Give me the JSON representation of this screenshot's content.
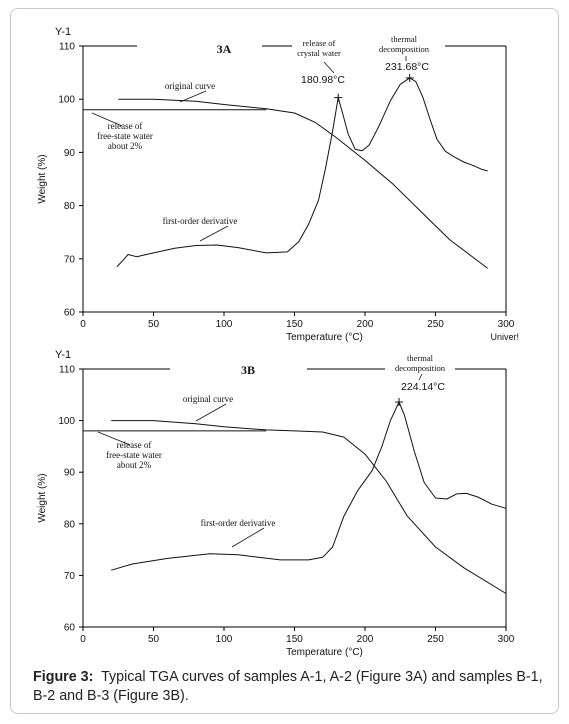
{
  "caption": {
    "label": "Figure 3:",
    "text": "Typical TGA curves of samples A-1, A-2 (Figure 3A) and samples B-1, B-2 and B-3 (Figure 3B)."
  },
  "chart_data": [
    {
      "type": "line",
      "panel_title": "3A",
      "corner_label": "Y-1",
      "xlabel": "Temperature (°C)",
      "ylabel": "Weight (%)",
      "x_unit_label": "Univer!",
      "xlim": [
        0,
        300
      ],
      "ylim": [
        60,
        110
      ],
      "x_ticks": [
        0,
        50,
        100,
        150,
        200,
        250,
        300
      ],
      "y_ticks": [
        60,
        70,
        80,
        90,
        100,
        110
      ],
      "grid": false,
      "series": [
        {
          "name": "original curve",
          "x": [
            25,
            50,
            80,
            100,
            130,
            150,
            165,
            180,
            200,
            220,
            240,
            260,
            287
          ],
          "y": [
            100,
            100,
            99.6,
            99,
            98.2,
            97.4,
            95.6,
            92.7,
            88.5,
            84,
            78.8,
            73.6,
            68.2
          ]
        },
        {
          "name": "first-order derivative",
          "x": [
            24,
            28,
            32,
            38,
            50,
            65,
            80,
            95,
            110,
            130,
            145,
            153,
            160,
            167,
            172,
            177,
            180.98,
            184,
            188,
            193,
            198,
            203,
            210,
            218,
            225,
            231.68,
            236,
            241,
            246,
            251,
            257,
            263,
            270,
            277,
            283,
            287
          ],
          "y": [
            68.5,
            69.6,
            70.8,
            70.4,
            71.1,
            72,
            72.5,
            72.6,
            72.1,
            71.1,
            71.3,
            73.2,
            76.5,
            81,
            87,
            94,
            100.3,
            97.5,
            93.5,
            90.6,
            90.3,
            91.4,
            95,
            99.7,
            102.8,
            104,
            103.3,
            100.4,
            96.3,
            92.5,
            90.2,
            89.2,
            88.2,
            87.5,
            86.8,
            86.5
          ]
        },
        {
          "name": "release of free-state water about 2%",
          "x": [
            0,
            130
          ],
          "y": [
            98,
            98
          ]
        }
      ],
      "annotations": [
        {
          "text_lines": [
            "original curve"
          ]
        },
        {
          "text_lines": [
            "release of",
            "free-state water",
            "about 2%"
          ]
        },
        {
          "text_lines": [
            "first-order derivative"
          ]
        },
        {
          "text_lines": [
            "release of",
            "crystal water"
          ],
          "peak_label": "180.98°C",
          "peak_x": 180.98,
          "peak_y": 100.3
        },
        {
          "text_lines": [
            "thermal",
            "decomposition"
          ],
          "peak_label": "231.68°C",
          "peak_x": 231.68,
          "peak_y": 104
        }
      ]
    },
    {
      "type": "line",
      "panel_title": "3B",
      "corner_label": "Y-1",
      "xlabel": "Temperature (°C)",
      "ylabel": "Weight (%)",
      "x_unit_label": "",
      "xlim": [
        0,
        300
      ],
      "ylim": [
        60,
        110
      ],
      "x_ticks": [
        0,
        50,
        100,
        150,
        200,
        250,
        300
      ],
      "y_ticks": [
        60,
        70,
        80,
        90,
        100,
        110
      ],
      "grid": false,
      "series": [
        {
          "name": "original curve",
          "x": [
            20,
            50,
            80,
            100,
            130,
            150,
            170,
            185,
            200,
            215,
            230,
            250,
            270,
            300
          ],
          "y": [
            100,
            100,
            99.4,
            98.8,
            98.2,
            98,
            97.8,
            96.8,
            93.5,
            88.3,
            81.5,
            75.5,
            71.5,
            66.5
          ]
        },
        {
          "name": "first-order derivative",
          "x": [
            20,
            35,
            60,
            90,
            110,
            140,
            160,
            170,
            177,
            185,
            195,
            205,
            212,
            218,
            224.14,
            228,
            235,
            242,
            250,
            258,
            265,
            272,
            280,
            290,
            300
          ],
          "y": [
            71,
            72.2,
            73.3,
            74.2,
            74,
            73,
            73,
            73.5,
            75.5,
            81.5,
            86.5,
            90.3,
            95,
            100,
            103.6,
            101,
            94,
            88,
            85,
            84.8,
            85.8,
            85.9,
            85.2,
            83.8,
            83
          ]
        },
        {
          "name": "release of free-state water about 2%",
          "x": [
            0,
            130
          ],
          "y": [
            98,
            98
          ]
        }
      ],
      "annotations": [
        {
          "text_lines": [
            "original curve"
          ]
        },
        {
          "text_lines": [
            "release of",
            "free-state water",
            "about 2%"
          ]
        },
        {
          "text_lines": [
            "first-order derivative"
          ]
        },
        {
          "text_lines": [
            "thermal",
            "decomposition"
          ],
          "peak_label": "224.14°C",
          "peak_x": 224.14,
          "peak_y": 103.6
        }
      ]
    }
  ]
}
